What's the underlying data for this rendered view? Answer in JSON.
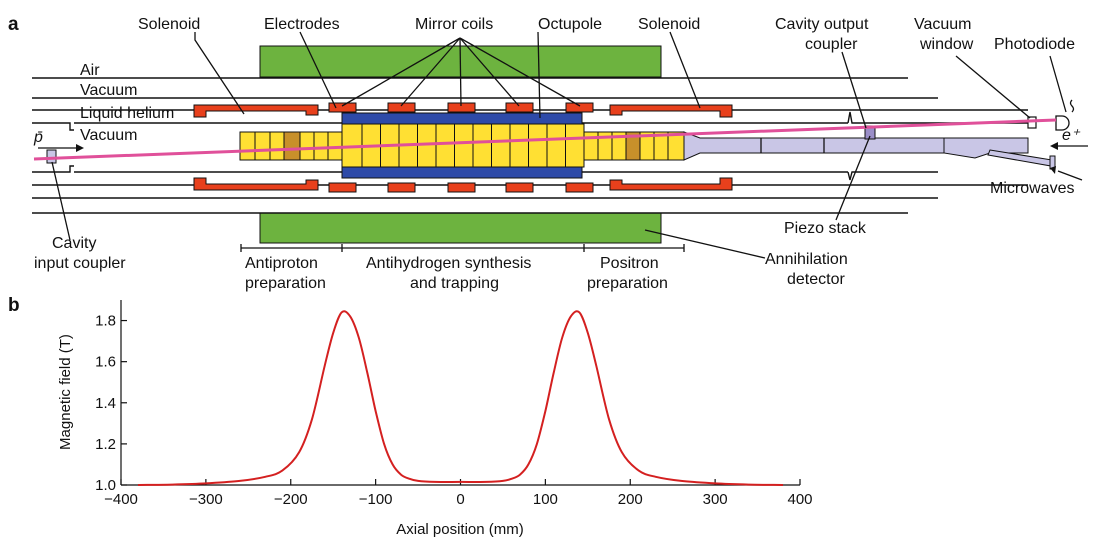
{
  "panel_a": {
    "letter": "a",
    "labels": {
      "solenoid_left": "Solenoid",
      "electrodes": "Electrodes",
      "mirror_coils": "Mirror coils",
      "octupole": "Octupole",
      "solenoid_right": "Solenoid",
      "cavity_output_coupler_1": "Cavity output",
      "cavity_output_coupler_2": "coupler",
      "vacuum_window_1": "Vacuum",
      "vacuum_window_2": "window",
      "photodiode": "Photodiode",
      "air": "Air",
      "vacuum_outer": "Vacuum",
      "liquid_helium": "Liquid helium",
      "vacuum_inner": "Vacuum",
      "pbar": "p̄",
      "eplus": "e⁺",
      "microwaves": "Microwaves",
      "piezo_stack": "Piezo stack",
      "cavity_input_coupler_1": "Cavity",
      "cavity_input_coupler_2": "input coupler",
      "antiproton_prep_1": "Antiproton",
      "antiproton_prep_2": "preparation",
      "antihydrogen_1": "Antihydrogen synthesis",
      "antihydrogen_2": "and trapping",
      "positron_prep_1": "Positron",
      "positron_prep_2": "preparation",
      "annihilation_1": "Annihilation",
      "annihilation_2": "detector"
    },
    "colors": {
      "solenoid": "#6db33f",
      "coil": "#e8401c",
      "electrode": "#ffe033",
      "electrode_dark": "#c8902a",
      "octupole": "#2e4aa8",
      "cavity": "#c9c6e6",
      "beam": "#e0509a"
    }
  },
  "panel_b": {
    "letter": "b",
    "chart_data": {
      "type": "line",
      "xlabel": "Axial position (mm)",
      "ylabel": "Magnetic field (T)",
      "xlim": [
        -400,
        400
      ],
      "ylim": [
        1.0,
        1.9
      ],
      "xticks": [
        -400,
        -300,
        -200,
        -100,
        0,
        100,
        200,
        300,
        400
      ],
      "yticks": [
        1.0,
        1.2,
        1.4,
        1.6,
        1.8
      ],
      "series": [
        {
          "color": "#d42020",
          "x": [
            -380,
            -340,
            -300,
            -260,
            -230,
            -210,
            -190,
            -175,
            -160,
            -150,
            -140,
            -130,
            -120,
            -110,
            -100,
            -90,
            -80,
            -70,
            -60,
            -50,
            -30,
            0,
            30,
            50,
            60,
            70,
            80,
            90,
            100,
            110,
            120,
            130,
            140,
            150,
            160,
            175,
            190,
            210,
            230,
            260,
            300,
            340,
            380
          ],
          "y": [
            1.0,
            1.002,
            1.008,
            1.02,
            1.04,
            1.07,
            1.16,
            1.32,
            1.58,
            1.74,
            1.84,
            1.82,
            1.72,
            1.55,
            1.36,
            1.2,
            1.1,
            1.05,
            1.03,
            1.02,
            1.015,
            1.015,
            1.015,
            1.02,
            1.03,
            1.05,
            1.1,
            1.2,
            1.36,
            1.55,
            1.72,
            1.82,
            1.84,
            1.74,
            1.58,
            1.32,
            1.16,
            1.07,
            1.04,
            1.02,
            1.008,
            1.002,
            1.0
          ]
        }
      ]
    }
  }
}
